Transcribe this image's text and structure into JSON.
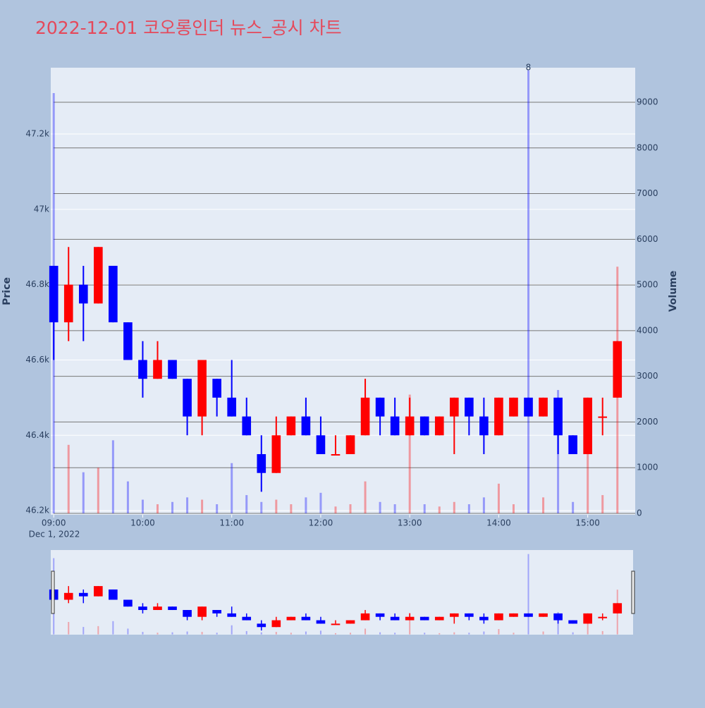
{
  "chart_data": {
    "type": "candlestick",
    "title": "2022-12-01 코오롱인더 뉴스_공시 차트",
    "ylabel": "Price",
    "y2label": "Volume",
    "x_date_label": "Dec 1, 2022",
    "increasing_color": "#ff0000",
    "decreasing_color": "#0000ff",
    "x": [
      "2022-12-01 09:00",
      "2022-12-01 09:10",
      "2022-12-01 09:20",
      "2022-12-01 09:30",
      "2022-12-01 09:40",
      "2022-12-01 09:50",
      "2022-12-01 10:00",
      "2022-12-01 10:10",
      "2022-12-01 10:20",
      "2022-12-01 10:30",
      "2022-12-01 10:40",
      "2022-12-01 10:50",
      "2022-12-01 11:00",
      "2022-12-01 11:10",
      "2022-12-01 11:20",
      "2022-12-01 11:30",
      "2022-12-01 11:40",
      "2022-12-01 11:50",
      "2022-12-01 12:00",
      "2022-12-01 12:10",
      "2022-12-01 12:20",
      "2022-12-01 12:30",
      "2022-12-01 12:40",
      "2022-12-01 12:50",
      "2022-12-01 13:00",
      "2022-12-01 13:10",
      "2022-12-01 13:20",
      "2022-12-01 13:30",
      "2022-12-01 13:40",
      "2022-12-01 13:50",
      "2022-12-01 14:00",
      "2022-12-01 14:10",
      "2022-12-01 14:20",
      "2022-12-01 14:30",
      "2022-12-01 14:40",
      "2022-12-01 14:50",
      "2022-12-01 15:00",
      "2022-12-01 15:10",
      "2022-12-01 15:20"
    ],
    "open": [
      46850,
      46700,
      46800,
      46750,
      46850,
      46700,
      46600,
      46550,
      46600,
      46550,
      46450,
      46550,
      46500,
      46450,
      46350,
      46300,
      46400,
      46450,
      46400,
      46350,
      46350,
      46400,
      46500,
      46450,
      46400,
      46450,
      46400,
      46450,
      46500,
      46450,
      46400,
      46450,
      46500,
      46450,
      46500,
      46400,
      46350,
      46450,
      46500
    ],
    "high": [
      46850,
      46900,
      46850,
      46900,
      46850,
      46700,
      46650,
      46650,
      46600,
      46550,
      46600,
      46550,
      46600,
      46500,
      46400,
      46450,
      46450,
      46500,
      46450,
      46400,
      46400,
      46550,
      46500,
      46500,
      46500,
      46450,
      46450,
      46500,
      46500,
      46500,
      46500,
      46500,
      46500,
      46500,
      46500,
      46400,
      46500,
      46500,
      46650
    ],
    "low": [
      46600,
      46650,
      46650,
      46750,
      46700,
      46600,
      46500,
      46550,
      46550,
      46400,
      46400,
      46450,
      46450,
      46400,
      46250,
      46300,
      46400,
      46400,
      46350,
      46350,
      46350,
      46400,
      46400,
      46400,
      46400,
      46400,
      46400,
      46350,
      46400,
      46350,
      46400,
      46450,
      46450,
      46450,
      46350,
      46350,
      46350,
      46400,
      46500
    ],
    "close": [
      46700,
      46800,
      46750,
      46900,
      46700,
      46600,
      46550,
      46600,
      46550,
      46450,
      46600,
      46500,
      46450,
      46400,
      46300,
      46400,
      46450,
      46400,
      46350,
      46350,
      46400,
      46500,
      46450,
      46400,
      46450,
      46400,
      46450,
      46500,
      46450,
      46400,
      46500,
      46500,
      46450,
      46500,
      46400,
      46350,
      46500,
      46450,
      46650
    ],
    "volume": [
      9200,
      1500,
      900,
      1000,
      1600,
      700,
      300,
      200,
      250,
      350,
      300,
      200,
      1100,
      400,
      250,
      300,
      200,
      350,
      450,
      150,
      200,
      700,
      250,
      200,
      2600,
      200,
      150,
      250,
      200,
      350,
      650,
      200,
      9700,
      350,
      2700,
      250,
      1800,
      400,
      5400
    ],
    "annotation": {
      "text": "8",
      "x": "2022-12-01 14:20"
    },
    "xlim": [
      "2022-12-01 08:58",
      "2022-12-01 15:32"
    ],
    "xticks": [
      {
        "value": "2022-12-01 09:00",
        "label": "09:00"
      },
      {
        "value": "2022-12-01 10:00",
        "label": "10:00"
      },
      {
        "value": "2022-12-01 11:00",
        "label": "11:00"
      },
      {
        "value": "2022-12-01 12:00",
        "label": "12:00"
      },
      {
        "value": "2022-12-01 13:00",
        "label": "13:00"
      },
      {
        "value": "2022-12-01 14:00",
        "label": "14:00"
      },
      {
        "value": "2022-12-01 15:00",
        "label": "15:00"
      }
    ],
    "ylim": [
      46189,
      47376
    ],
    "yticks": [
      {
        "value": 46200,
        "label": "46.2k"
      },
      {
        "value": 46400,
        "label": "46.4k"
      },
      {
        "value": 46600,
        "label": "46.6k"
      },
      {
        "value": 46800,
        "label": "46.8k"
      },
      {
        "value": 47000,
        "label": "47k"
      },
      {
        "value": 47200,
        "label": "47.2k"
      }
    ],
    "y2lim": [
      -31,
      9756
    ],
    "y2ticks": [
      0,
      1000,
      2000,
      3000,
      4000,
      5000,
      6000,
      7000,
      8000,
      9000
    ],
    "grid": true
  }
}
